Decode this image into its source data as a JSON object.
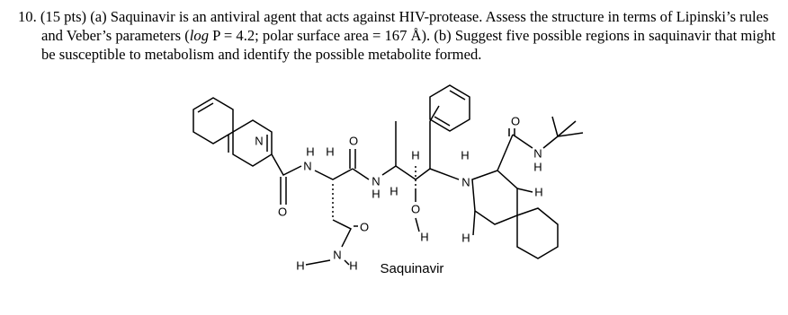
{
  "question": {
    "number": "10.",
    "text_1": "(15 pts) (a) Saquinavir is an antiviral agent that acts against HIV-protease. Assess the structure in terms of Lipinski’s rules and Veber’s parameters (",
    "italic": "log",
    "text_2": " P = 4.2; polar surface area = 167 Å). (b) Suggest five possible regions in saquinavir that might be susceptible to metabolism and identify the possible metabolite formed."
  },
  "structure": {
    "name": "Saquinavir",
    "labels": [
      "N",
      "H",
      "H",
      "N",
      "O",
      "O",
      "N",
      "H",
      "H",
      "H",
      "O",
      "H",
      "O",
      "N",
      "H",
      "H",
      "H",
      "N",
      "H",
      "O",
      "N",
      "H",
      "H"
    ]
  }
}
